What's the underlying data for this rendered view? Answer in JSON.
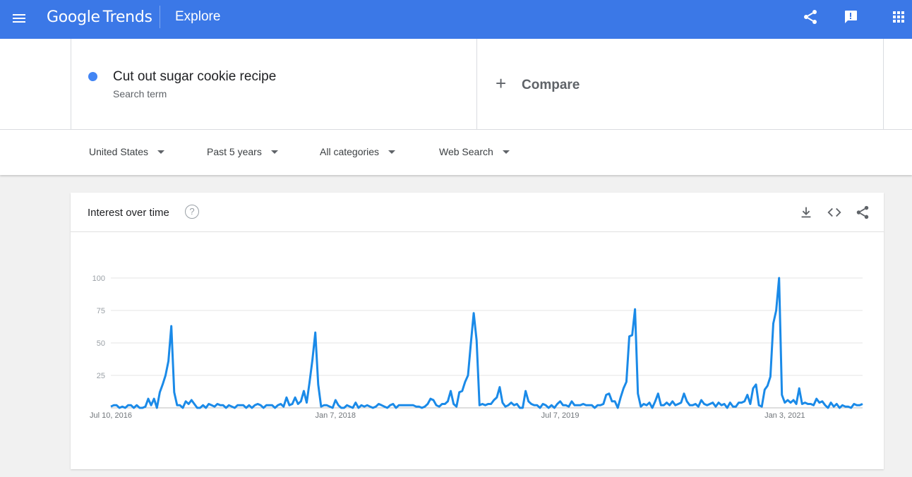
{
  "header": {
    "logo_google": "Google",
    "logo_trends": "Trends",
    "section": "Explore",
    "menu_icon": "hamburger-menu-icon",
    "share_icon": "share-icon",
    "feedback_icon": "feedback-icon",
    "apps_icon": "apps-grid-icon",
    "bg_color": "#3b78e7"
  },
  "search": {
    "term": "Cut out sugar cookie recipe",
    "term_type": "Search term",
    "term_color": "#4285f4",
    "compare_label": "Compare",
    "compare_symbol": "+"
  },
  "filters": [
    {
      "label": "United States"
    },
    {
      "label": "Past 5 years"
    },
    {
      "label": "All categories"
    },
    {
      "label": "Web Search"
    }
  ],
  "card": {
    "title": "Interest over time",
    "help_symbol": "?",
    "download_icon": "download-icon",
    "embed_icon": "embed-code-icon",
    "share_icon": "share-icon"
  },
  "chart_data": {
    "type": "line",
    "title": "",
    "xlabel": "",
    "ylabel": "",
    "ylim": [
      0,
      100
    ],
    "yticks": [
      25,
      50,
      75,
      100
    ],
    "xtick_labels": [
      "Jul 10, 2016",
      "Jan 7, 2018",
      "Jul 7, 2019",
      "Jan 3, 2021"
    ],
    "xtick_indices": [
      0,
      78,
      156,
      234
    ],
    "grid": true,
    "color": "#1a8ae8",
    "series": [
      {
        "values": [
          1,
          2,
          2,
          0,
          1,
          0,
          2,
          2,
          0,
          2,
          0,
          0,
          1,
          7,
          2,
          7,
          0,
          12,
          18,
          25,
          36,
          63,
          12,
          2,
          2,
          0,
          5,
          3,
          6,
          3,
          0,
          0,
          2,
          0,
          3,
          2,
          1,
          3,
          2,
          2,
          0,
          2,
          1,
          0,
          2,
          2,
          2,
          0,
          2,
          0,
          2,
          3,
          2,
          0,
          2,
          2,
          2,
          0,
          2,
          3,
          1,
          8,
          2,
          3,
          8,
          3,
          5,
          13,
          4,
          20,
          37,
          58,
          18,
          1,
          2,
          2,
          1,
          0,
          6,
          2,
          0,
          0,
          2,
          1,
          0,
          4,
          0,
          2,
          1,
          2,
          1,
          0,
          1,
          3,
          2,
          1,
          0,
          2,
          3,
          0,
          2,
          2,
          2,
          2,
          2,
          2,
          1,
          1,
          0,
          1,
          3,
          7,
          6,
          2,
          1,
          3,
          3,
          5,
          13,
          3,
          1,
          12,
          13,
          20,
          25,
          50,
          73,
          52,
          2,
          3,
          2,
          3,
          3,
          6,
          8,
          16,
          4,
          1,
          2,
          4,
          2,
          3,
          0,
          0,
          13,
          5,
          3,
          2,
          2,
          0,
          3,
          2,
          0,
          2,
          0,
          3,
          5,
          2,
          2,
          1,
          5,
          2,
          2,
          2,
          3,
          2,
          2,
          2,
          0,
          2,
          2,
          3,
          10,
          11,
          5,
          5,
          0,
          8,
          15,
          20,
          55,
          56,
          76,
          11,
          1,
          3,
          2,
          4,
          0,
          5,
          11,
          2,
          2,
          4,
          2,
          5,
          2,
          3,
          4,
          11,
          5,
          2,
          2,
          3,
          1,
          6,
          3,
          2,
          3,
          4,
          1,
          4,
          2,
          3,
          0,
          4,
          1,
          1,
          4,
          4,
          5,
          10,
          3,
          15,
          18,
          2,
          1,
          14,
          17,
          24,
          65,
          75,
          100,
          10,
          4,
          6,
          4,
          6,
          3,
          15,
          3,
          4,
          3,
          3,
          2,
          7,
          4,
          5,
          2,
          0,
          4,
          1,
          3,
          0,
          2,
          1,
          1,
          0,
          3,
          2,
          2,
          3
        ]
      }
    ]
  }
}
